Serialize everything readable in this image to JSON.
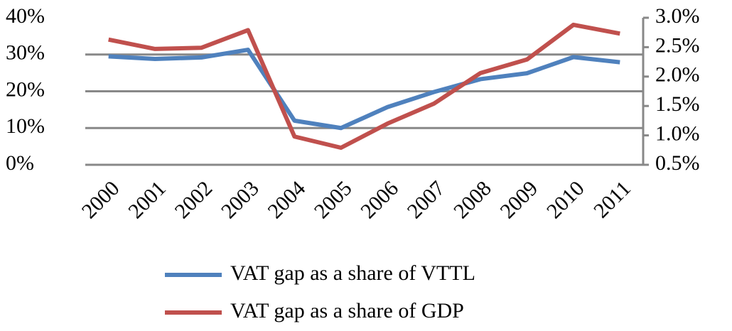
{
  "chart_data": {
    "type": "line",
    "categories": [
      "2000",
      "2001",
      "2002",
      "2003",
      "2004",
      "2005",
      "2006",
      "2007",
      "2008",
      "2009",
      "2010",
      "2011"
    ],
    "series": [
      {
        "name": "VAT gap as a share of VTTL",
        "color": "#4f81bd",
        "values": [
          29.5,
          28.8,
          29.2,
          31.3,
          12,
          10,
          15.7,
          19.8,
          23.3,
          24.9,
          29.3,
          27.9
        ]
      },
      {
        "name": "VAT gap as a share of GDP",
        "color": "#c0504d",
        "axis": "y2",
        "values": [
          2.63,
          2.47,
          2.49,
          2.79,
          0.98,
          0.79,
          1.2,
          1.54,
          2.06,
          2.29,
          2.88,
          2.73
        ]
      }
    ],
    "ylim": [
      0,
      40
    ],
    "yticks": [
      {
        "value": 0,
        "label": "0%"
      },
      {
        "value": 10,
        "label": "10%"
      },
      {
        "value": 20,
        "label": "20%"
      },
      {
        "value": 30,
        "label": "30%"
      },
      {
        "value": 40,
        "label": "40%"
      }
    ],
    "y2lim": [
      0.5,
      3.0
    ],
    "y2ticks": [
      {
        "value": 0.5,
        "label": "0.5%"
      },
      {
        "value": 1.0,
        "label": "1.0%"
      },
      {
        "value": 1.5,
        "label": "1.5%"
      },
      {
        "value": 2.0,
        "label": "2.0%"
      },
      {
        "value": 2.5,
        "label": "2.5%"
      },
      {
        "value": 3.0,
        "label": "3.0%"
      }
    ],
    "grid": true,
    "legend": "bottom"
  }
}
